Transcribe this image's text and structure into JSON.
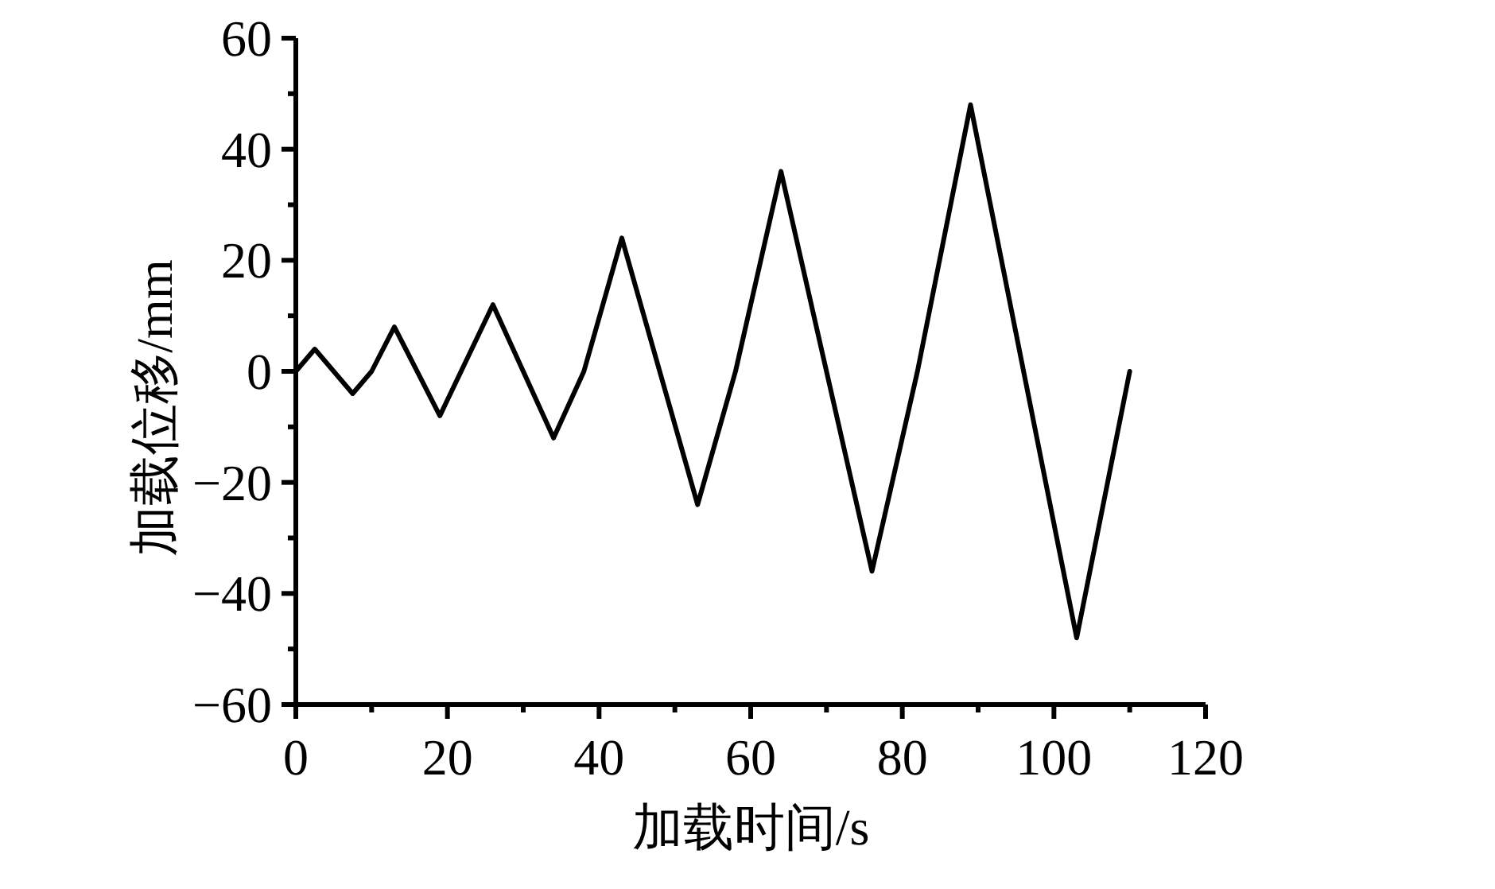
{
  "chart_data": {
    "type": "line",
    "xlabel": "加载时间/s",
    "ylabel": "加载位移/mm",
    "x": [
      0,
      2.5,
      7.5,
      10,
      13,
      19,
      26,
      34,
      38,
      43,
      53,
      58,
      64,
      76,
      82,
      89,
      103,
      110
    ],
    "series": [
      {
        "color": "#000000",
        "values": [
          0,
          4,
          -4,
          0,
          8,
          -8,
          12,
          -12,
          0,
          24,
          -24,
          0,
          36,
          -36,
          0,
          48,
          -48,
          0
        ]
      }
    ],
    "xlim": [
      0,
      120
    ],
    "ylim": [
      -60,
      60
    ],
    "xticks": [
      0,
      {
        "value": 10,
        "label": null
      },
      20,
      {
        "value": 30,
        "label": null
      },
      40,
      {
        "value": 50,
        "label": null
      },
      60,
      {
        "value": 70,
        "label": null
      },
      80,
      {
        "value": 90,
        "label": null
      },
      100,
      {
        "value": 110,
        "label": null
      },
      120
    ],
    "yticks": [
      {
        "value": -60,
        "label": "−60"
      },
      {
        "value": -50,
        "label": null
      },
      {
        "value": -40,
        "label": "−40"
      },
      {
        "value": -30,
        "label": null
      },
      {
        "value": -20,
        "label": "−20"
      },
      {
        "value": -10,
        "label": null
      },
      0,
      {
        "value": 10,
        "label": null
      },
      20,
      {
        "value": 30,
        "label": null
      },
      40,
      {
        "value": 50,
        "label": null
      },
      60
    ],
    "grid": false,
    "marker": "none",
    "line_style": "solid"
  }
}
